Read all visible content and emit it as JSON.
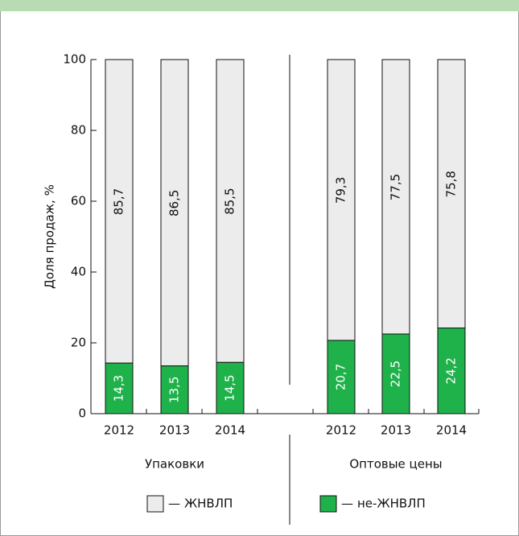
{
  "chart_data": {
    "type": "stacked_bar",
    "y_label": "Доля продаж, %",
    "categories": [
      "2012",
      "2013",
      "2014",
      "2012",
      "2013",
      "2014"
    ],
    "groups": [
      "Упаковки",
      "Оптовые цены"
    ],
    "series": [
      {
        "name": "не-ЖНВЛП",
        "color": "#1fb24a",
        "values": [
          14.3,
          13.5,
          14.5,
          20.7,
          22.5,
          24.2
        ],
        "value_labels": [
          "14,3",
          "13,5",
          "14,5",
          "20,7",
          "22,5",
          "24,2"
        ]
      },
      {
        "name": "ЖНВЛП",
        "color": "#ececec",
        "values": [
          85.7,
          86.5,
          85.5,
          79.3,
          77.5,
          75.8
        ],
        "value_labels": [
          "85,7",
          "86,5",
          "85,5",
          "79,3",
          "77,5",
          "75,8"
        ]
      }
    ],
    "ylim": [
      0,
      100
    ],
    "yticks": [
      0,
      20,
      40,
      60,
      80,
      100
    ]
  }
}
